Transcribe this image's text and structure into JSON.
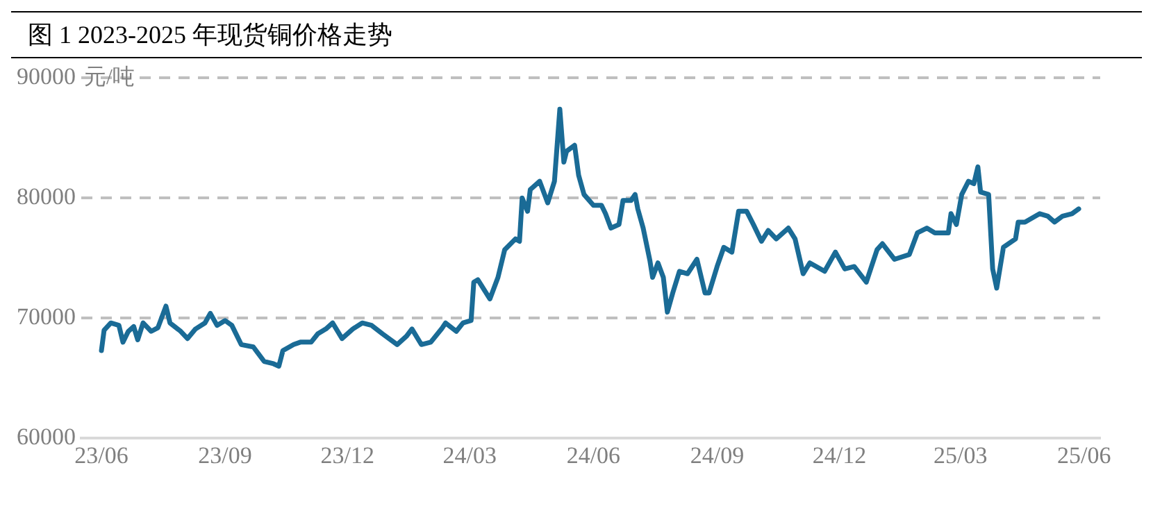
{
  "chart_data": {
    "type": "line",
    "title": "图 1 2023-2025 年现货铜价格走势",
    "ylabel": "元/吨",
    "x": [
      "2023-06-01",
      "2023-06-03",
      "2023-06-08",
      "2023-06-14",
      "2023-06-17",
      "2023-06-21",
      "2023-06-25",
      "2023-06-28",
      "2023-07-02",
      "2023-07-08",
      "2023-07-13",
      "2023-07-19",
      "2023-07-22",
      "2023-07-30",
      "2023-08-04",
      "2023-08-10",
      "2023-08-17",
      "2023-08-21",
      "2023-08-26",
      "2023-09-01",
      "2023-09-06",
      "2023-09-13",
      "2023-09-22",
      "2023-09-30",
      "2023-10-07",
      "2023-10-11",
      "2023-10-14",
      "2023-10-22",
      "2023-10-27",
      "2023-11-04",
      "2023-11-09",
      "2023-11-15",
      "2023-11-20",
      "2023-11-27",
      "2023-12-05",
      "2023-12-12",
      "2023-12-19",
      "2023-12-27",
      "2024-01-07",
      "2024-01-14",
      "2024-01-18",
      "2024-01-25",
      "2024-02-01",
      "2024-02-09",
      "2024-02-12",
      "2024-02-20",
      "2024-02-25",
      "2024-03-02",
      "2024-03-04",
      "2024-03-07",
      "2024-03-16",
      "2024-03-22",
      "2024-03-27",
      "2024-04-04",
      "2024-04-07",
      "2024-04-09",
      "2024-04-13",
      "2024-04-15",
      "2024-04-22",
      "2024-04-28",
      "2024-05-03",
      "2024-05-07",
      "2024-05-10",
      "2024-05-12",
      "2024-05-18",
      "2024-05-21",
      "2024-05-25",
      "2024-06-01",
      "2024-06-07",
      "2024-06-10",
      "2024-06-14",
      "2024-06-20",
      "2024-06-23",
      "2024-06-29",
      "2024-07-02",
      "2024-07-04",
      "2024-07-08",
      "2024-07-13",
      "2024-07-15",
      "2024-07-19",
      "2024-07-23",
      "2024-07-26",
      "2024-07-30",
      "2024-08-04",
      "2024-08-10",
      "2024-08-17",
      "2024-08-23",
      "2024-08-26",
      "2024-09-01",
      "2024-09-06",
      "2024-09-12",
      "2024-09-17",
      "2024-09-23",
      "2024-09-28",
      "2024-10-04",
      "2024-10-09",
      "2024-10-15",
      "2024-10-24",
      "2024-10-29",
      "2024-11-04",
      "2024-11-09",
      "2024-11-20",
      "2024-11-28",
      "2024-12-05",
      "2024-12-12",
      "2024-12-21",
      "2024-12-29",
      "2025-01-02",
      "2025-01-11",
      "2025-01-22",
      "2025-01-28",
      "2025-02-04",
      "2025-02-10",
      "2025-02-20",
      "2025-02-22",
      "2025-02-26",
      "2025-03-02",
      "2025-03-07",
      "2025-03-11",
      "2025-03-14",
      "2025-03-16",
      "2025-03-22",
      "2025-03-25",
      "2025-03-28",
      "2025-04-02",
      "2025-04-11",
      "2025-04-13",
      "2025-04-18",
      "2025-04-29",
      "2025-05-05",
      "2025-05-10",
      "2025-05-16",
      "2025-05-23",
      "2025-05-28"
    ],
    "series": [
      {
        "color": "#1a6b96",
        "values": [
          67300,
          69000,
          69600,
          69400,
          68000,
          68900,
          69300,
          68200,
          69600,
          68900,
          69200,
          71000,
          69600,
          68900,
          68300,
          69100,
          69600,
          70400,
          69400,
          69800,
          69400,
          67800,
          67600,
          66400,
          66200,
          66000,
          67300,
          67800,
          68000,
          68000,
          68700,
          69100,
          69600,
          68300,
          69100,
          69600,
          69400,
          68700,
          67800,
          68500,
          69100,
          67800,
          68000,
          69100,
          69600,
          68900,
          69600,
          69800,
          73000,
          73200,
          71600,
          73400,
          75700,
          76600,
          76400,
          80000,
          78900,
          80700,
          81400,
          79600,
          81400,
          87400,
          83000,
          83900,
          84400,
          81900,
          80300,
          79400,
          79400,
          78700,
          77500,
          77800,
          79800,
          79800,
          80300,
          79100,
          77500,
          74800,
          73400,
          74600,
          73400,
          70500,
          72100,
          73900,
          73700,
          74900,
          72100,
          72100,
          74300,
          75900,
          75500,
          78900,
          78900,
          77800,
          76400,
          77300,
          76600,
          77500,
          76600,
          73700,
          74600,
          73900,
          75500,
          74100,
          74300,
          73000,
          75700,
          76200,
          74900,
          75300,
          77100,
          77500,
          77100,
          77100,
          78700,
          77800,
          80300,
          81400,
          81200,
          82600,
          80500,
          80300,
          74100,
          72500,
          75900,
          76600,
          78000,
          78000,
          78700,
          78500,
          78000,
          78500,
          78700,
          79100
        ]
      }
    ],
    "xlim": [
      "2023-05-17",
      "2025-06-13"
    ],
    "xticks": [
      {
        "value": "2023-06-01",
        "label": "23/06"
      },
      {
        "value": "2023-09-01",
        "label": "23/09"
      },
      {
        "value": "2023-12-01",
        "label": "23/12"
      },
      {
        "value": "2024-03-01",
        "label": "24/03"
      },
      {
        "value": "2024-06-01",
        "label": "24/06"
      },
      {
        "value": "2024-09-01",
        "label": "24/09"
      },
      {
        "value": "2024-12-01",
        "label": "24/12"
      },
      {
        "value": "2025-03-01",
        "label": "25/03"
      },
      {
        "value": "2025-06-01",
        "label": "25/06"
      }
    ],
    "ylim": [
      60000,
      90000
    ],
    "yticks": [
      60000,
      70000,
      80000,
      90000
    ],
    "grid": "y",
    "legend": false,
    "marker": "none",
    "line_style": "solid"
  }
}
